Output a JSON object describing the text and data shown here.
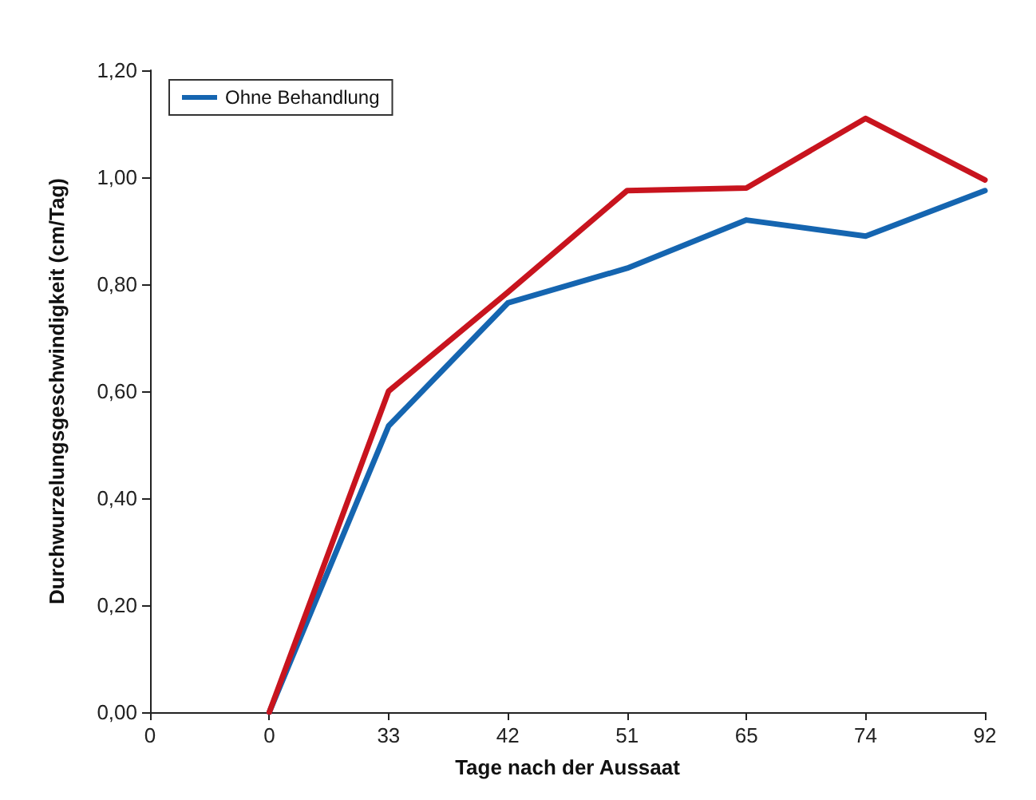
{
  "chart_data": {
    "type": "line",
    "xlabel": "Tage nach der Aussaat",
    "ylabel": "Durchwurzelungsgeschwindigkeit (cm/Tag)",
    "categories": [
      "0",
      "0",
      "33",
      "42",
      "51",
      "65",
      "74",
      "92"
    ],
    "series": [
      {
        "name": "Ohne Behandlung",
        "color": "#1565b0",
        "values": [
          null,
          0.0,
          0.535,
          0.765,
          0.83,
          0.92,
          0.89,
          0.975
        ]
      },
      {
        "color": "#c8141e",
        "values": [
          null,
          0.0,
          0.6,
          0.785,
          0.975,
          0.98,
          1.11,
          0.995
        ]
      }
    ],
    "ylim": [
      0,
      1.2
    ],
    "yticks": [
      {
        "value": 0,
        "label": "0,00"
      },
      {
        "value": 0.2,
        "label": "0,20"
      },
      {
        "value": 0.4,
        "label": "0,40"
      },
      {
        "value": 0.6,
        "label": "0,60"
      },
      {
        "value": 0.8,
        "label": "0,80"
      },
      {
        "value": 1,
        "label": "1,00"
      },
      {
        "value": 1.2,
        "label": "1,20"
      }
    ],
    "grid": false,
    "legend": "top left",
    "marker": "none",
    "line_style": "solid"
  }
}
